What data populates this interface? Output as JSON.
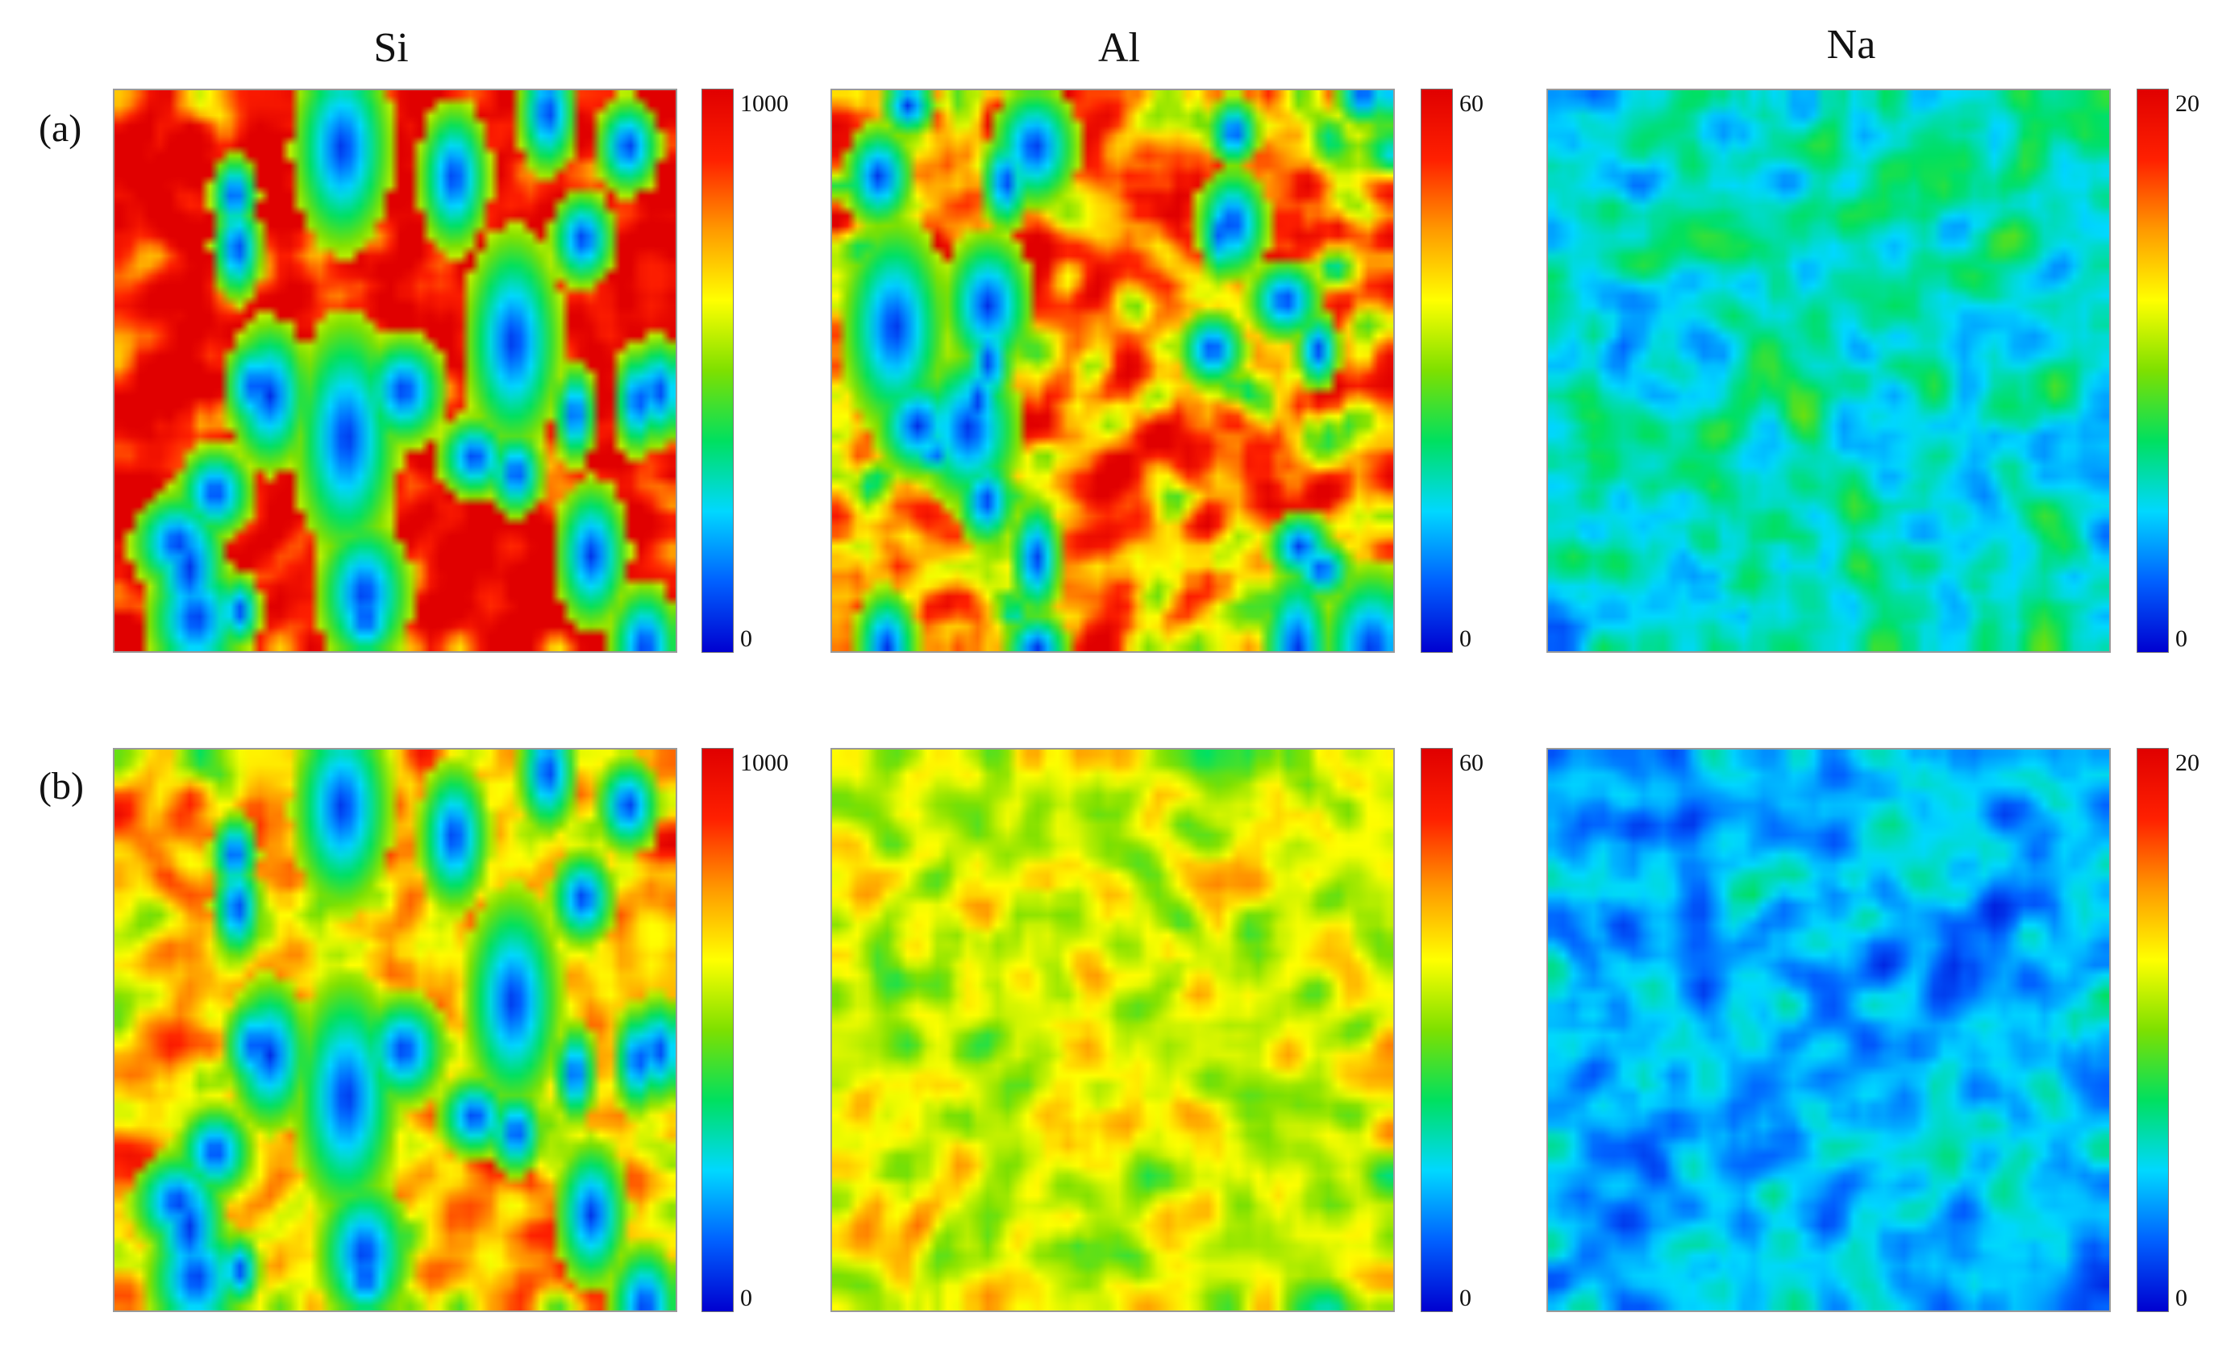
{
  "chart_data": {
    "type": "heatmap",
    "columns": [
      "Si",
      "Al",
      "Na"
    ],
    "rows": [
      "(a)",
      "(b)"
    ],
    "panels": [
      {
        "row": "(a)",
        "element": "Si",
        "vmin": 0,
        "vmax": 1000,
        "ticks": [
          "1000",
          "0"
        ],
        "typical_level": 0.95,
        "variation": 0.35,
        "seed": 11,
        "blobs": true
      },
      {
        "row": "(a)",
        "element": "Al",
        "vmin": 0,
        "vmax": 60,
        "ticks": [
          "60",
          "0"
        ],
        "typical_level": 0.75,
        "variation": 0.45,
        "seed": 23,
        "blobs": true
      },
      {
        "row": "(a)",
        "element": "Na",
        "vmin": 0,
        "vmax": 20,
        "ticks": [
          "20",
          "0"
        ],
        "typical_level": 0.3,
        "variation": 0.18,
        "seed": 37,
        "blobs": false
      },
      {
        "row": "(b)",
        "element": "Si",
        "vmin": 0,
        "vmax": 1000,
        "ticks": [
          "1000",
          "0"
        ],
        "typical_level": 0.68,
        "variation": 0.28,
        "seed": 11,
        "blobs": true
      },
      {
        "row": "(b)",
        "element": "Al",
        "vmin": 0,
        "vmax": 60,
        "ticks": [
          "60",
          "0"
        ],
        "typical_level": 0.58,
        "variation": 0.22,
        "seed": 51,
        "blobs": false
      },
      {
        "row": "(b)",
        "element": "Na",
        "vmin": 0,
        "vmax": 20,
        "ticks": [
          "20",
          "0"
        ],
        "typical_level": 0.22,
        "variation": 0.17,
        "seed": 67,
        "blobs": false
      }
    ],
    "colormap": [
      "#0000d0",
      "#0060ff",
      "#00d8ff",
      "#00e060",
      "#7ee000",
      "#ffff00",
      "#ff9a00",
      "#ff2000",
      "#e00000"
    ]
  }
}
